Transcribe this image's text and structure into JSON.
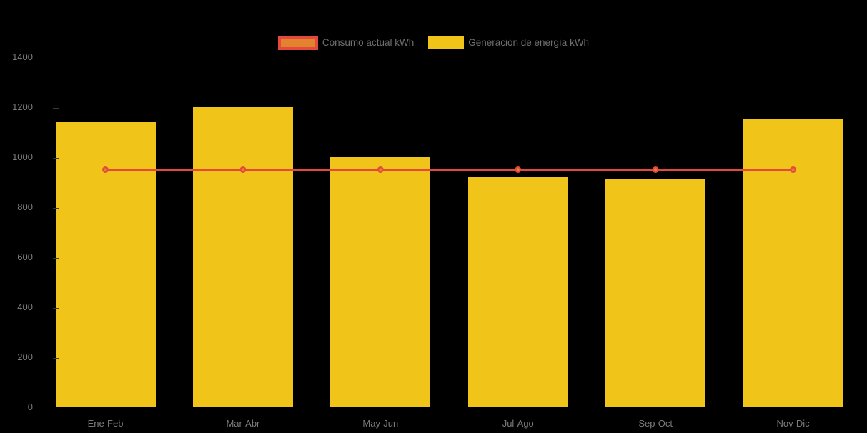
{
  "colors": {
    "background": "#000000",
    "bar_yellow": "#F0C419",
    "line_red": "#E5483C",
    "marker_orange": "#E2832D",
    "axis_text": "#7B7B7B",
    "legend_text": "#6F6F6F",
    "tickmark": "#3A3A3A"
  },
  "legend": {
    "items": [
      {
        "label": "Consumo actual kWh",
        "series_type": "line",
        "swatch_fill": "#E2832D",
        "swatch_border": "#E5483C"
      },
      {
        "label": "Generación de energía kWh",
        "series_type": "bar",
        "swatch_fill": "#F0C419"
      }
    ]
  },
  "chart_data": {
    "type": "bar",
    "title": "",
    "xlabel": "",
    "ylabel": "",
    "categories": [
      "Ene-Feb",
      "Mar-Abr",
      "May-Jun",
      "Jul-Ago",
      "Sep-Oct",
      "Nov-Dic"
    ],
    "series": [
      {
        "name": "Generación de energía kWh",
        "type": "bar",
        "color": "#F0C419",
        "values": [
          1140,
          1200,
          1000,
          920,
          915,
          1155
        ]
      },
      {
        "name": "Consumo actual kWh",
        "type": "line",
        "color": "#E5483C",
        "marker_fill": "#E2832D",
        "values": [
          950,
          950,
          950,
          950,
          950,
          950
        ]
      }
    ],
    "ylim": [
      0,
      1400
    ],
    "y_ticks": [
      0,
      200,
      400,
      600,
      800,
      1000,
      1200,
      1400
    ],
    "grid": false,
    "legend_position": "top-center",
    "background": "black"
  }
}
